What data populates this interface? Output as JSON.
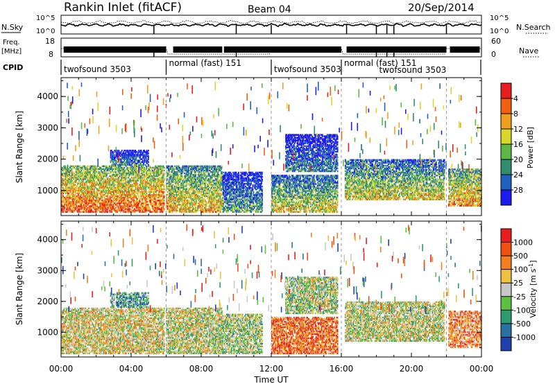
{
  "header": {
    "station": "Rankin Inlet (fitACF)",
    "beam": "Beam 04",
    "date": "20/Sep/2014"
  },
  "strips": {
    "nsky_label": "N.Sky",
    "nsky_ticks": [
      "10^5",
      "10^0"
    ],
    "nsearch_label": "N.Search",
    "nsearch_ticks": [
      "10^5",
      "10^0"
    ],
    "freq_label": "Freq.",
    "freq_unit": "[MHz]",
    "freq_ticks": [
      "18",
      "8"
    ],
    "nave_label": "Nave",
    "nave_ticks": [
      "60",
      "0"
    ],
    "cpid_label": "CPID",
    "cpid_segments": [
      {
        "label": "twofsound 3503",
        "start": 0.0,
        "end": 6.0
      },
      {
        "label": "normal (fast) 151",
        "start": 6.0,
        "end": 12.0
      },
      {
        "label": "twofsound 3503",
        "start": 12.0,
        "end": 16.0
      },
      {
        "label": "normal (fast) 151",
        "start": 16.0,
        "end": 22.0
      },
      {
        "label": "twofsound 3503",
        "start": 18.0,
        "end": 22.0
      }
    ]
  },
  "chart_data": [
    {
      "type": "heatmap",
      "parameter": "power",
      "ylabel": "Slant Range [km]",
      "xlabel": "",
      "ylim": [
        200,
        4600
      ],
      "yticks": [
        "1000",
        "2000",
        "3000",
        "4000"
      ],
      "colorbar_label": "Power [dB]",
      "colorbar_ticks": [
        "4",
        "8",
        "12",
        "16",
        "20",
        "24",
        "28"
      ],
      "colors": [
        "#1c1cf0",
        "#2060c0",
        "#2e8e6e",
        "#5cb846",
        "#d8d82c",
        "#f0a020",
        "#f06010",
        "#e81e1e"
      ],
      "echo_regions": [
        {
          "t0": 0.0,
          "t1": 5.9,
          "r0": 300,
          "r1": 1800,
          "level": 0.85
        },
        {
          "t0": 2.8,
          "t1": 5.0,
          "r0": 1800,
          "r1": 2300,
          "level": 0.3
        },
        {
          "t0": 6.0,
          "t1": 9.2,
          "r0": 300,
          "r1": 1800,
          "level": 0.7
        },
        {
          "t0": 9.2,
          "t1": 11.5,
          "r0": 300,
          "r1": 1600,
          "level": 0.4
        },
        {
          "t0": 12.0,
          "t1": 15.8,
          "r0": 300,
          "r1": 1500,
          "level": 0.6
        },
        {
          "t0": 12.8,
          "t1": 15.8,
          "r0": 1600,
          "r1": 2800,
          "level": 0.3
        },
        {
          "t0": 16.2,
          "t1": 21.9,
          "r0": 700,
          "r1": 2000,
          "level": 0.6
        },
        {
          "t0": 22.1,
          "t1": 24.0,
          "r0": 500,
          "r1": 1700,
          "level": 0.75
        }
      ]
    },
    {
      "type": "heatmap",
      "parameter": "velocity",
      "ylabel": "Slant Range [km]",
      "xlabel": "Time UT",
      "ylim": [
        200,
        4600
      ],
      "yticks": [
        "1000",
        "2000",
        "3000",
        "4000"
      ],
      "xticks": [
        "00:00",
        "04:00",
        "08:00",
        "12:00",
        "16:00",
        "20:00",
        "00:00"
      ],
      "xlim": [
        0,
        24
      ],
      "colorbar_label": "Velocity [m s",
      "colorbar_label_sup": "-1",
      "colorbar_label_end": "]",
      "colorbar_ticks": [
        "1000",
        "500",
        "100",
        "25",
        "-25",
        "-100",
        "-500",
        "-1000"
      ],
      "colors": [
        "#2040b0",
        "#2a70a0",
        "#2e9a70",
        "#5cc040",
        "#c8c8c8",
        "#f0c040",
        "#f08020",
        "#f05010",
        "#e81e1e"
      ],
      "echo_regions": [
        {
          "t0": 0.0,
          "t1": 5.9,
          "r0": 300,
          "r1": 1800,
          "level": 0.55
        },
        {
          "t0": 2.8,
          "t1": 5.0,
          "r0": 1800,
          "r1": 2300,
          "level": 0.3
        },
        {
          "t0": 6.0,
          "t1": 9.2,
          "r0": 300,
          "r1": 1800,
          "level": 0.5
        },
        {
          "t0": 9.2,
          "t1": 11.5,
          "r0": 300,
          "r1": 1600,
          "level": 0.45
        },
        {
          "t0": 12.0,
          "t1": 15.8,
          "r0": 300,
          "r1": 1500,
          "level": 0.8
        },
        {
          "t0": 12.8,
          "t1": 15.8,
          "r0": 1600,
          "r1": 2800,
          "level": 0.45
        },
        {
          "t0": 16.2,
          "t1": 21.9,
          "r0": 700,
          "r1": 2000,
          "level": 0.5
        },
        {
          "t0": 22.1,
          "t1": 24.0,
          "r0": 500,
          "r1": 1700,
          "level": 0.7
        }
      ]
    }
  ]
}
